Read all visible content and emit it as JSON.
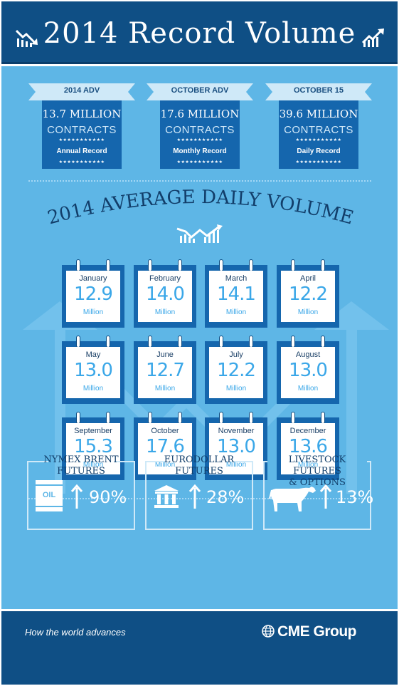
{
  "header": {
    "title": "2014 Record Volume"
  },
  "stats": [
    {
      "label": "2014 ADV",
      "value": "13.7 MILLION",
      "unit": "CONTRACTS",
      "stars": "★★★★★★★★★★★",
      "record": "Annual Record"
    },
    {
      "label": "OCTOBER ADV",
      "value": "17.6 MILLION",
      "unit": "CONTRACTS",
      "stars": "★★★★★★★★★★★",
      "record": "Monthly Record"
    },
    {
      "label": "OCTOBER 15",
      "value": "39.6 MILLION",
      "unit": "CONTRACTS",
      "stars": "★★★★★★★★★★★",
      "record": "Daily Record"
    }
  ],
  "section": {
    "title": "2014 AVERAGE DAILY VOLUME"
  },
  "months": [
    {
      "name": "January",
      "value": "12.9",
      "unit": "Million"
    },
    {
      "name": "February",
      "value": "14.0",
      "unit": "Million"
    },
    {
      "name": "March",
      "value": "14.1",
      "unit": "Million"
    },
    {
      "name": "April",
      "value": "12.2",
      "unit": "Million"
    },
    {
      "name": "May",
      "value": "13.0",
      "unit": "Million"
    },
    {
      "name": "June",
      "value": "12.7",
      "unit": "Million"
    },
    {
      "name": "July",
      "value": "12.2",
      "unit": "Million"
    },
    {
      "name": "August",
      "value": "13.0",
      "unit": "Million"
    },
    {
      "name": "September",
      "value": "15.3",
      "unit": "Million"
    },
    {
      "name": "October",
      "value": "17.6",
      "unit": "Million"
    },
    {
      "name": "November",
      "value": "13.0",
      "unit": "Million"
    },
    {
      "name": "December",
      "value": "13.6",
      "unit": "Million"
    }
  ],
  "growth": [
    {
      "line1": "NYMEX BRENT",
      "line2": "FUTURES",
      "icon": "oil-barrel-icon",
      "icon_text": "OIL",
      "pct": "90%"
    },
    {
      "line1": "EURODOLLAR",
      "line2": "FUTURES",
      "icon": "bank-icon",
      "pct": "28%"
    },
    {
      "line1": "LIVESTOCK FUTURES",
      "line2": "& OPTIONS",
      "icon": "cow-icon",
      "pct": "13%"
    }
  ],
  "footer": {
    "tagline": "How the world advances",
    "brand": "CME Group"
  },
  "colors": {
    "navy": "#0f4f85",
    "sky": "#5eb6e6",
    "box": "#1566ad",
    "value": "#3aa7e8"
  }
}
